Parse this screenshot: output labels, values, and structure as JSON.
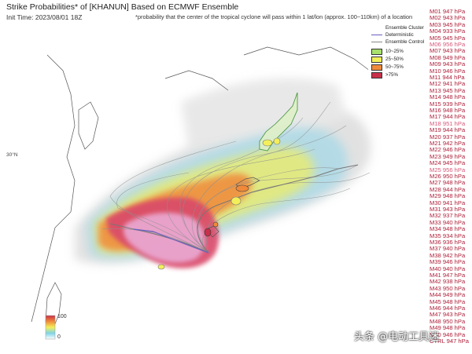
{
  "header": {
    "title": "Strike Probabilities* of [KHANUN] Based on ECMWF Ensemble",
    "init_time": "Init Time: 2023/08/01 18Z",
    "note": "*probability that the center of the tropical cyclone will pass within 1 lat/lon (approx. 100~110km) of a location"
  },
  "legend": {
    "ensemble_cluster": "Ensemble Cluster",
    "deterministic": "Deterministic",
    "ensemble_control": "Ensemble Control",
    "bins": [
      {
        "label": "10~25%",
        "color": "#a8e06b"
      },
      {
        "label": "25~50%",
        "color": "#f3ef5a"
      },
      {
        "label": "50~75%",
        "color": "#f08a3a"
      },
      {
        "label": ">75%",
        "color": "#c8304a"
      }
    ]
  },
  "map": {
    "lat_label": "30°N"
  },
  "colorbar": {
    "max_label": "100",
    "min_label": "0"
  },
  "members": [
    {
      "name": "M01",
      "pressure": "947 hPa",
      "color": "#b0203a"
    },
    {
      "name": "M02",
      "pressure": "943 hPa",
      "color": "#b0203a"
    },
    {
      "name": "M03",
      "pressure": "945 hPa",
      "color": "#b0203a"
    },
    {
      "name": "M04",
      "pressure": "933 hPa",
      "color": "#b0203a"
    },
    {
      "name": "M05",
      "pressure": "945 hPa",
      "color": "#b0203a"
    },
    {
      "name": "M06",
      "pressure": "956 hPa",
      "color": "#d9587a"
    },
    {
      "name": "M07",
      "pressure": "943 hPa",
      "color": "#b0203a"
    },
    {
      "name": "M08",
      "pressure": "949 hPa",
      "color": "#b0203a"
    },
    {
      "name": "M09",
      "pressure": "943 hPa",
      "color": "#b0203a"
    },
    {
      "name": "M10",
      "pressure": "946 hPa",
      "color": "#b0203a"
    },
    {
      "name": "M11",
      "pressure": "944 hPa",
      "color": "#b0203a"
    },
    {
      "name": "M12",
      "pressure": "941 hPa",
      "color": "#b0203a"
    },
    {
      "name": "M13",
      "pressure": "945 hPa",
      "color": "#b0203a"
    },
    {
      "name": "M14",
      "pressure": "948 hPa",
      "color": "#b0203a"
    },
    {
      "name": "M15",
      "pressure": "939 hPa",
      "color": "#b0203a"
    },
    {
      "name": "M16",
      "pressure": "948 hPa",
      "color": "#b0203a"
    },
    {
      "name": "M17",
      "pressure": "944 hPa",
      "color": "#b0203a"
    },
    {
      "name": "M18",
      "pressure": "951 hPa",
      "color": "#d9587a"
    },
    {
      "name": "M19",
      "pressure": "944 hPa",
      "color": "#b0203a"
    },
    {
      "name": "M20",
      "pressure": "937 hPa",
      "color": "#b0203a"
    },
    {
      "name": "M21",
      "pressure": "942 hPa",
      "color": "#b0203a"
    },
    {
      "name": "M22",
      "pressure": "946 hPa",
      "color": "#b0203a"
    },
    {
      "name": "M23",
      "pressure": "949 hPa",
      "color": "#b0203a"
    },
    {
      "name": "M24",
      "pressure": "945 hPa",
      "color": "#b0203a"
    },
    {
      "name": "M25",
      "pressure": "956 hPa",
      "color": "#d9587a"
    },
    {
      "name": "M26",
      "pressure": "950 hPa",
      "color": "#b0203a"
    },
    {
      "name": "M27",
      "pressure": "948 hPa",
      "color": "#b0203a"
    },
    {
      "name": "M28",
      "pressure": "944 hPa",
      "color": "#b0203a"
    },
    {
      "name": "M29",
      "pressure": "948 hPa",
      "color": "#b0203a"
    },
    {
      "name": "M30",
      "pressure": "941 hPa",
      "color": "#b0203a"
    },
    {
      "name": "M31",
      "pressure": "943 hPa",
      "color": "#b0203a"
    },
    {
      "name": "M32",
      "pressure": "937 hPa",
      "color": "#b0203a"
    },
    {
      "name": "M33",
      "pressure": "940 hPa",
      "color": "#b0203a"
    },
    {
      "name": "M34",
      "pressure": "948 hPa",
      "color": "#b0203a"
    },
    {
      "name": "M35",
      "pressure": "934 hPa",
      "color": "#b0203a"
    },
    {
      "name": "M36",
      "pressure": "936 hPa",
      "color": "#b0203a"
    },
    {
      "name": "M37",
      "pressure": "940 hPa",
      "color": "#b0203a"
    },
    {
      "name": "M38",
      "pressure": "942 hPa",
      "color": "#b0203a"
    },
    {
      "name": "M39",
      "pressure": "946 hPa",
      "color": "#b0203a"
    },
    {
      "name": "M40",
      "pressure": "940 hPa",
      "color": "#b0203a"
    },
    {
      "name": "M41",
      "pressure": "947 hPa",
      "color": "#b0203a"
    },
    {
      "name": "M42",
      "pressure": "938 hPa",
      "color": "#b0203a"
    },
    {
      "name": "M43",
      "pressure": "950 hPa",
      "color": "#b0203a"
    },
    {
      "name": "M44",
      "pressure": "949 hPa",
      "color": "#b0203a"
    },
    {
      "name": "M45",
      "pressure": "948 hPa",
      "color": "#b0203a"
    },
    {
      "name": "M46",
      "pressure": "944 hPa",
      "color": "#b0203a"
    },
    {
      "name": "M47",
      "pressure": "943 hPa",
      "color": "#b0203a"
    },
    {
      "name": "M48",
      "pressure": "950 hPa",
      "color": "#b0203a"
    },
    {
      "name": "M49",
      "pressure": "948 hPa",
      "color": "#b0203a"
    },
    {
      "name": "M50",
      "pressure": "946 hPa",
      "color": "#b0203a"
    },
    {
      "name": "CTRL",
      "pressure": "947 hPa",
      "color": "#b0203a"
    }
  ],
  "watermark": "头条 @电动工具迷"
}
